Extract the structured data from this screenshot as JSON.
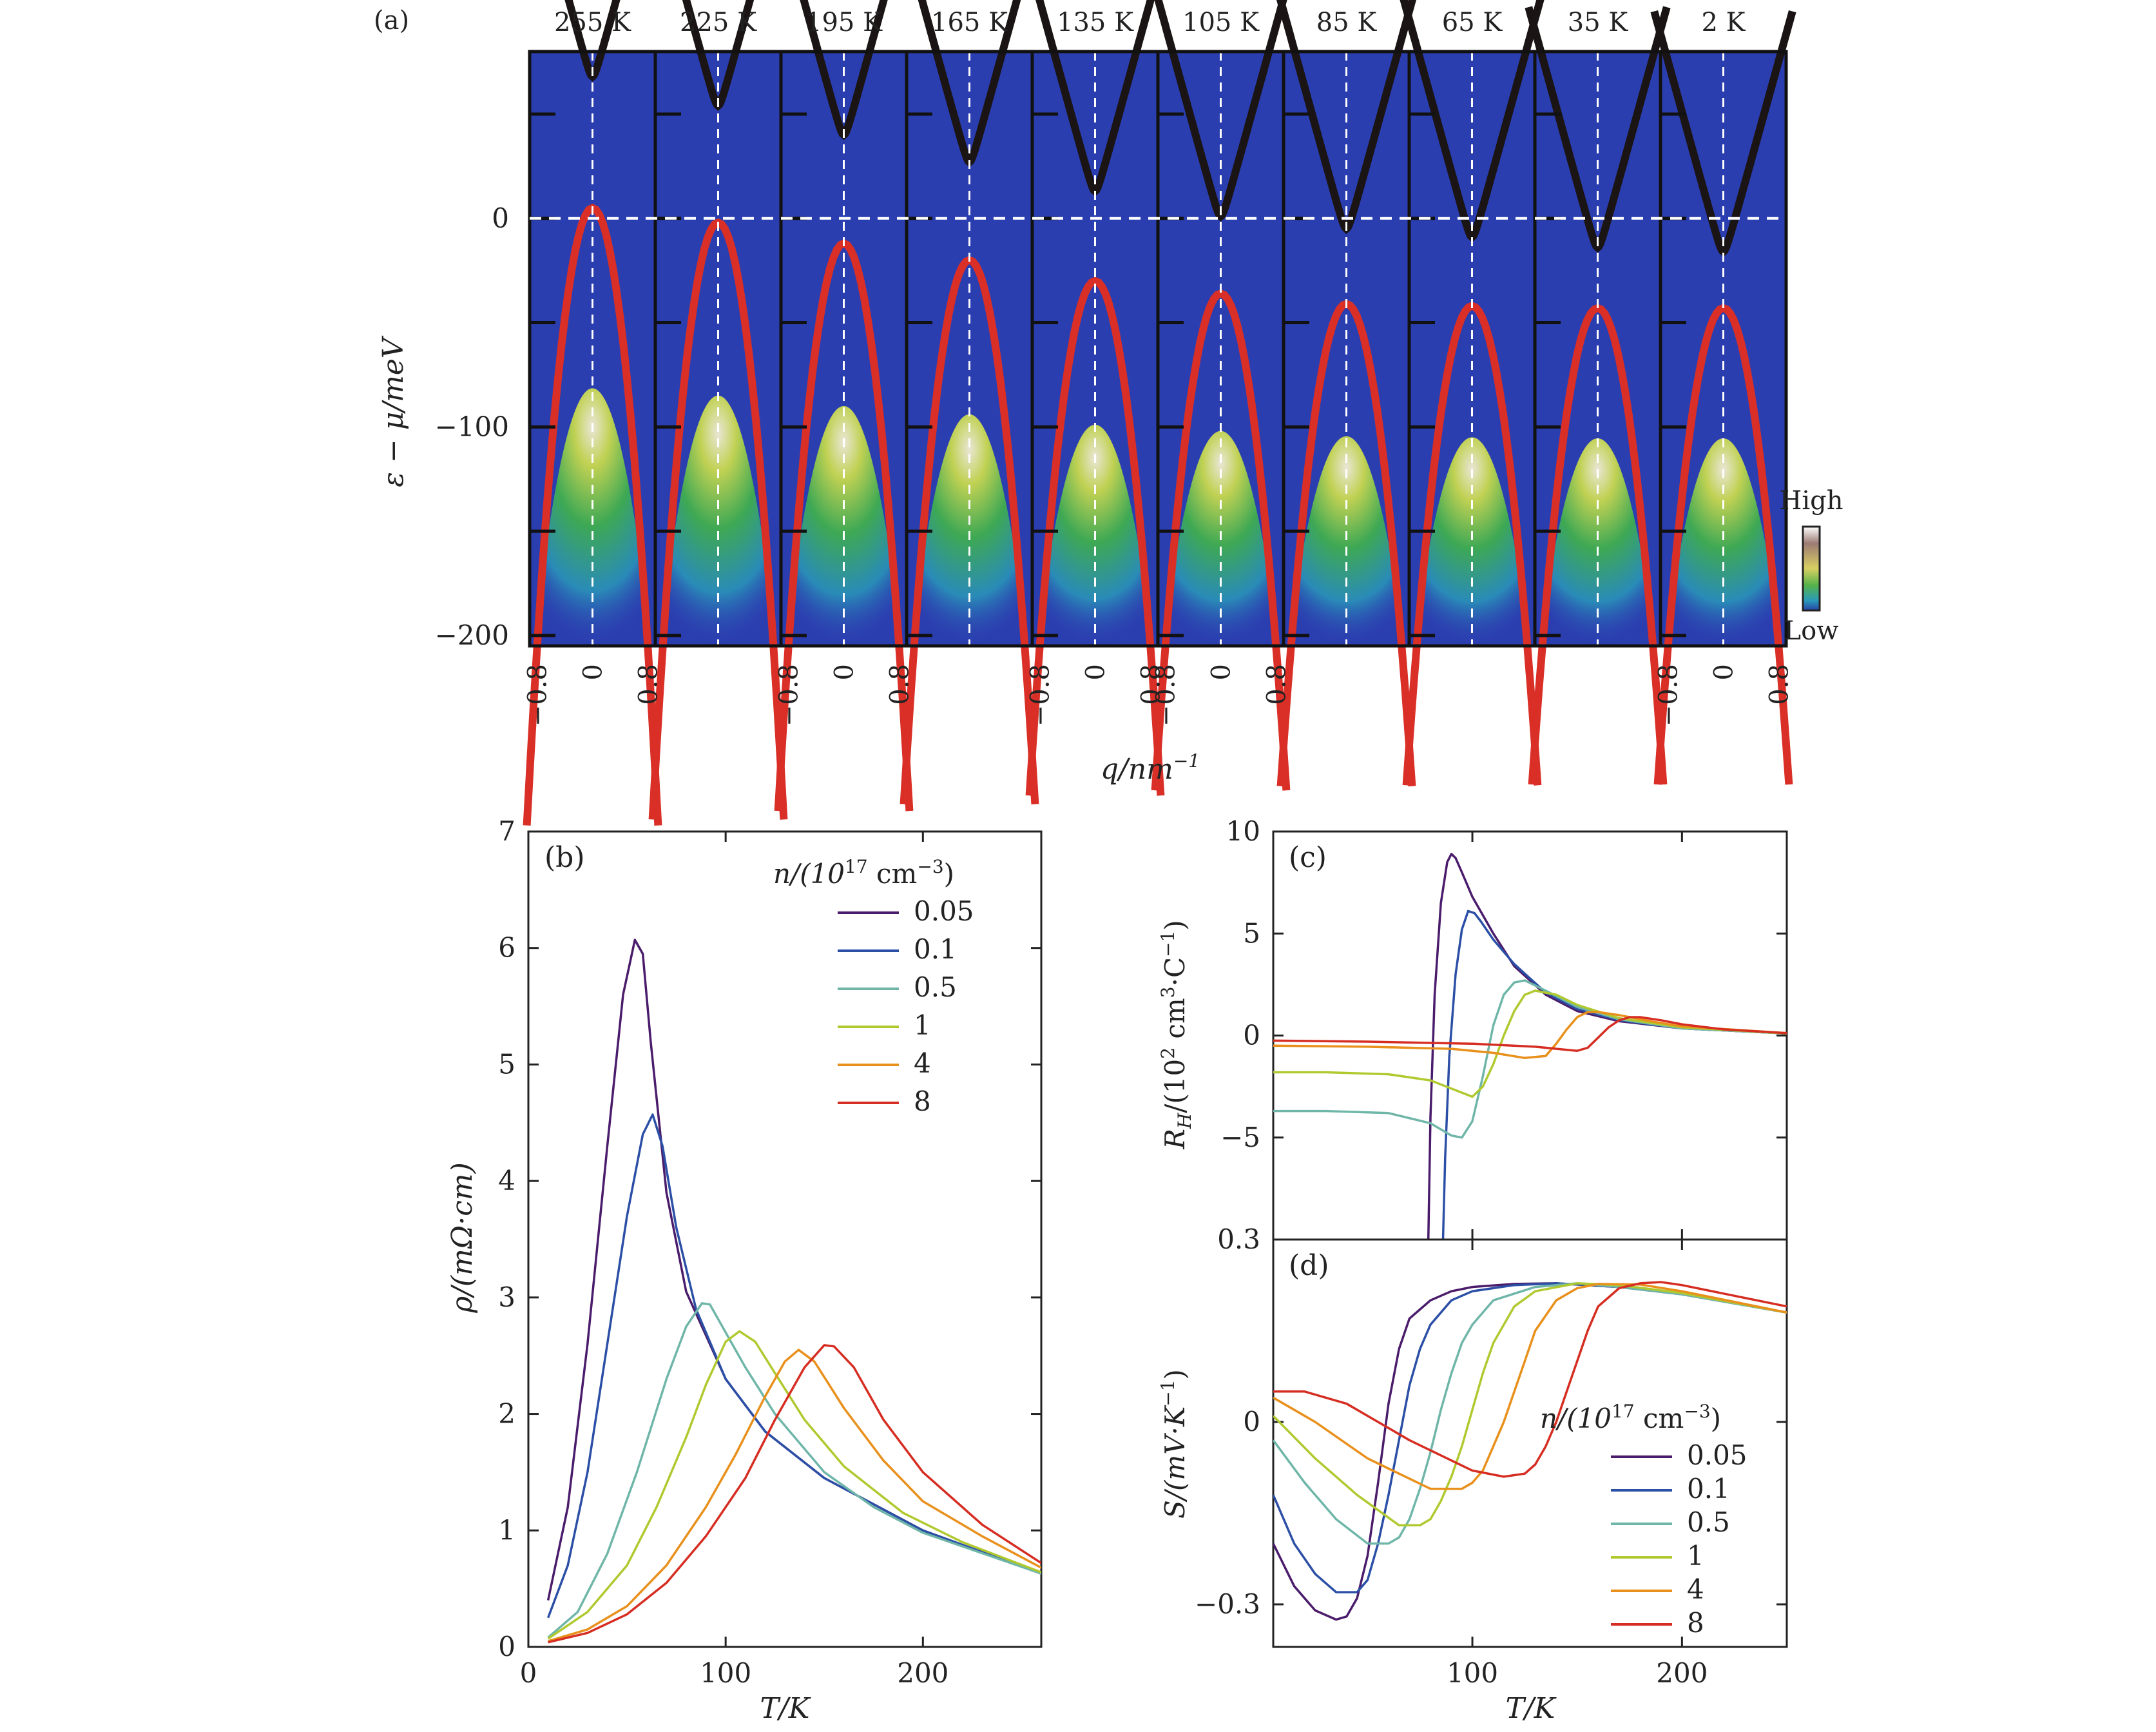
{
  "chart_data": [
    {
      "panel": "(a)",
      "type": "heatmap",
      "temperatures": [
        "255 K",
        "225 K",
        "195 K",
        "165 K",
        "135 K",
        "105 K",
        "85 K",
        "65 K",
        "35 K",
        "2 K"
      ],
      "conduction_min_meV": [
        68,
        54,
        40,
        27,
        13,
        1,
        -5,
        -9,
        -14,
        -16
      ],
      "valence_max_meV": [
        5,
        -2,
        -12,
        -20,
        -30,
        -36,
        -41,
        -42,
        -43,
        -43
      ],
      "ylabel": "ε − μ/meV",
      "xlabel": "q/nm",
      "xlabel_sup": "−1",
      "ylim": [
        -205,
        80
      ],
      "xlim": [
        -0.8,
        0.8
      ],
      "ytick_labels": [
        {
          "v": 0,
          "t": "0"
        },
        {
          "v": -100,
          "t": "−100"
        },
        {
          "v": -200,
          "t": "−200"
        }
      ],
      "minor_yticks": [
        50,
        0,
        -50,
        -100,
        -150,
        -200
      ],
      "xtick_labels": [
        "−0.8",
        "0",
        "0.8"
      ],
      "x_tick_panels": [
        0,
        2,
        4,
        5,
        9
      ],
      "colorbar": {
        "high": "High",
        "low": "Low"
      },
      "colors": {
        "valence": "#d92f27",
        "conduction": "#1a1414",
        "background": "#2b3eb0"
      }
    },
    {
      "panel": "(b)",
      "type": "line",
      "ylabel": "ρ/(mΩ·cm)",
      "xlabel": "T/K",
      "xlim": [
        0,
        260
      ],
      "ylim": [
        0,
        7
      ],
      "xticks": [
        0,
        100,
        200
      ],
      "yticks": [
        0,
        1,
        2,
        3,
        4,
        5,
        6,
        7
      ],
      "legend_title": "n/(10",
      "legend_title_sup": "17",
      "legend_title_tail": " cm",
      "legend_title_sup2": "−3",
      "legend_title_end": ")",
      "legend_position": "top-right",
      "series": [
        {
          "name": "0.05",
          "color": "#4a1c6b",
          "x": [
            10,
            20,
            30,
            40,
            48,
            54,
            58,
            62,
            70,
            80,
            100,
            120,
            150,
            200,
            260
          ],
          "y": [
            0.4,
            1.2,
            2.6,
            4.3,
            5.6,
            6.07,
            5.95,
            5.2,
            3.9,
            3.05,
            2.3,
            1.85,
            1.45,
            1.0,
            0.63
          ]
        },
        {
          "name": "0.1",
          "color": "#2c4fa6",
          "x": [
            10,
            20,
            30,
            40,
            50,
            58,
            63,
            68,
            75,
            85,
            100,
            120,
            150,
            200,
            260
          ],
          "y": [
            0.25,
            0.7,
            1.5,
            2.6,
            3.7,
            4.4,
            4.57,
            4.3,
            3.6,
            2.9,
            2.3,
            1.85,
            1.45,
            1.0,
            0.63
          ]
        },
        {
          "name": "0.5",
          "color": "#6fb6a9",
          "x": [
            10,
            25,
            40,
            55,
            70,
            80,
            88,
            92,
            100,
            110,
            125,
            150,
            175,
            200,
            260
          ],
          "y": [
            0.08,
            0.3,
            0.8,
            1.5,
            2.3,
            2.75,
            2.95,
            2.94,
            2.7,
            2.4,
            2.0,
            1.5,
            1.2,
            0.98,
            0.63
          ]
        },
        {
          "name": "1",
          "color": "#b0c92f",
          "x": [
            10,
            30,
            50,
            65,
            80,
            90,
            100,
            107,
            115,
            125,
            140,
            160,
            190,
            220,
            260
          ],
          "y": [
            0.07,
            0.3,
            0.7,
            1.2,
            1.8,
            2.25,
            2.62,
            2.71,
            2.62,
            2.35,
            1.95,
            1.55,
            1.15,
            0.9,
            0.64
          ]
        },
        {
          "name": "4",
          "color": "#e8901b",
          "x": [
            10,
            30,
            50,
            70,
            90,
            105,
            120,
            130,
            137,
            145,
            160,
            180,
            200,
            230,
            260
          ],
          "y": [
            0.05,
            0.15,
            0.35,
            0.7,
            1.2,
            1.65,
            2.15,
            2.45,
            2.55,
            2.45,
            2.05,
            1.6,
            1.25,
            0.95,
            0.68
          ]
        },
        {
          "name": "8",
          "color": "#d62d22",
          "x": [
            10,
            30,
            50,
            70,
            90,
            110,
            125,
            140,
            150,
            155,
            165,
            180,
            200,
            230,
            260
          ],
          "y": [
            0.04,
            0.12,
            0.28,
            0.55,
            0.95,
            1.45,
            1.95,
            2.4,
            2.59,
            2.58,
            2.4,
            1.95,
            1.5,
            1.05,
            0.72
          ]
        }
      ]
    },
    {
      "panel": "(c)",
      "type": "line",
      "ylabel": "R",
      "ylabel_sub": "H",
      "ylabel_tail": "/(10",
      "ylabel_sup": "2",
      "ylabel_tail2": " cm",
      "ylabel_sup2": "3",
      "ylabel_tail3": "·C",
      "ylabel_sup3": "−1",
      "ylabel_end": ")",
      "xlim": [
        5,
        250
      ],
      "ylim": [
        -10,
        10
      ],
      "yticks": [
        -5,
        0,
        5,
        10
      ],
      "series": [
        {
          "name": "0.05",
          "color": "#4a1c6b",
          "x": [
            79,
            80,
            82,
            85,
            88,
            90,
            92,
            95,
            100,
            110,
            120,
            135,
            150,
            170,
            200,
            250
          ],
          "y": [
            -10,
            -4,
            2,
            6.5,
            8.5,
            8.9,
            8.7,
            8.0,
            6.8,
            5.0,
            3.4,
            2.0,
            1.2,
            0.7,
            0.35,
            0.1
          ]
        },
        {
          "name": "0.1",
          "color": "#2c4fa6",
          "x": [
            86,
            87,
            89,
            92,
            95,
            98,
            101,
            104,
            110,
            120,
            135,
            150,
            170,
            200,
            250
          ],
          "y": [
            -10,
            -6,
            -1,
            3,
            5.2,
            6.1,
            6.0,
            5.6,
            4.7,
            3.5,
            2.1,
            1.3,
            0.75,
            0.35,
            0.1
          ]
        },
        {
          "name": "0.5",
          "color": "#6fb6a9",
          "x": [
            5,
            30,
            60,
            80,
            90,
            95,
            100,
            105,
            110,
            115,
            120,
            125,
            135,
            150,
            170,
            200,
            250
          ],
          "y": [
            -3.7,
            -3.7,
            -3.8,
            -4.3,
            -4.9,
            -5.0,
            -4.2,
            -2,
            0.5,
            2.0,
            2.6,
            2.7,
            2.2,
            1.4,
            0.8,
            0.35,
            0.1
          ]
        },
        {
          "name": "1",
          "color": "#b0c92f",
          "x": [
            5,
            30,
            60,
            80,
            95,
            100,
            105,
            110,
            115,
            120,
            125,
            130,
            140,
            150,
            170,
            200,
            250
          ],
          "y": [
            -1.8,
            -1.8,
            -1.9,
            -2.2,
            -2.8,
            -3.0,
            -2.5,
            -1.4,
            0,
            1.2,
            2.0,
            2.2,
            2.0,
            1.5,
            0.85,
            0.4,
            0.1
          ]
        },
        {
          "name": "4",
          "color": "#e8901b",
          "x": [
            5,
            50,
            90,
            110,
            125,
            135,
            140,
            145,
            150,
            155,
            160,
            170,
            185,
            200,
            250
          ],
          "y": [
            -0.5,
            -0.55,
            -0.65,
            -0.85,
            -1.1,
            -1.0,
            -0.4,
            0.3,
            0.9,
            1.15,
            1.15,
            1.0,
            0.7,
            0.45,
            0.12
          ]
        },
        {
          "name": "8",
          "color": "#d62d22",
          "x": [
            5,
            50,
            100,
            130,
            150,
            155,
            160,
            165,
            170,
            175,
            180,
            190,
            200,
            220,
            250
          ],
          "y": [
            -0.25,
            -0.3,
            -0.4,
            -0.55,
            -0.75,
            -0.6,
            -0.1,
            0.4,
            0.75,
            0.9,
            0.9,
            0.75,
            0.55,
            0.3,
            0.12
          ]
        }
      ]
    },
    {
      "panel": "(d)",
      "type": "line",
      "ylabel": "S/(mV·K",
      "ylabel_sup": "−1",
      "ylabel_end": ")",
      "xlabel": "T/K",
      "xlim": [
        5,
        250
      ],
      "ylim": [
        -0.37,
        0.3
      ],
      "xticks": [
        100,
        200
      ],
      "yticks": [
        -0.3,
        0,
        0.3
      ],
      "ytick_labels": [
        "−0.3",
        "0",
        "0.3"
      ],
      "legend_title": "n/(10",
      "legend_title_sup": "17",
      "legend_title_tail": " cm",
      "legend_title_sup2": "−3",
      "legend_title_end": ")",
      "legend_position": "bottom-right",
      "series": [
        {
          "name": "0.05",
          "color": "#4a1c6b",
          "x": [
            5,
            15,
            25,
            35,
            40,
            45,
            50,
            55,
            60,
            65,
            70,
            80,
            90,
            100,
            120,
            140,
            170,
            200,
            250
          ],
          "y": [
            -0.2,
            -0.27,
            -0.31,
            -0.325,
            -0.32,
            -0.29,
            -0.22,
            -0.1,
            0.03,
            0.12,
            0.17,
            0.2,
            0.215,
            0.222,
            0.227,
            0.228,
            0.222,
            0.21,
            0.18
          ]
        },
        {
          "name": "0.1",
          "color": "#2c4fa6",
          "x": [
            5,
            15,
            25,
            35,
            45,
            50,
            55,
            60,
            65,
            70,
            75,
            80,
            90,
            100,
            120,
            140,
            170,
            200,
            250
          ],
          "y": [
            -0.12,
            -0.2,
            -0.25,
            -0.28,
            -0.28,
            -0.26,
            -0.2,
            -0.12,
            -0.03,
            0.06,
            0.12,
            0.16,
            0.2,
            0.215,
            0.225,
            0.228,
            0.222,
            0.21,
            0.18
          ]
        },
        {
          "name": "0.5",
          "color": "#6fb6a9",
          "x": [
            5,
            20,
            35,
            50,
            60,
            65,
            70,
            75,
            80,
            85,
            90,
            95,
            100,
            110,
            130,
            150,
            170,
            200,
            250
          ],
          "y": [
            -0.03,
            -0.1,
            -0.16,
            -0.2,
            -0.2,
            -0.19,
            -0.16,
            -0.11,
            -0.05,
            0.02,
            0.08,
            0.13,
            0.16,
            0.2,
            0.222,
            0.228,
            0.222,
            0.21,
            0.18
          ]
        },
        {
          "name": "1",
          "color": "#b0c92f",
          "x": [
            5,
            25,
            45,
            65,
            75,
            80,
            85,
            90,
            95,
            100,
            105,
            110,
            120,
            130,
            150,
            170,
            200,
            250
          ],
          "y": [
            0.01,
            -0.06,
            -0.12,
            -0.17,
            -0.17,
            -0.16,
            -0.13,
            -0.09,
            -0.04,
            0.02,
            0.08,
            0.13,
            0.19,
            0.215,
            0.228,
            0.225,
            0.212,
            0.18
          ]
        },
        {
          "name": "4",
          "color": "#e8901b",
          "x": [
            5,
            25,
            50,
            80,
            95,
            100,
            105,
            110,
            115,
            120,
            125,
            130,
            140,
            150,
            160,
            180,
            200,
            250
          ],
          "y": [
            0.04,
            0.0,
            -0.06,
            -0.11,
            -0.11,
            -0.1,
            -0.08,
            -0.04,
            0.0,
            0.05,
            0.1,
            0.15,
            0.2,
            0.22,
            0.227,
            0.226,
            0.215,
            0.18
          ]
        },
        {
          "name": "8",
          "color": "#d62d22",
          "x": [
            5,
            20,
            40,
            70,
            100,
            115,
            125,
            130,
            135,
            140,
            145,
            150,
            155,
            160,
            170,
            180,
            190,
            200,
            250
          ],
          "y": [
            0.05,
            0.05,
            0.03,
            -0.03,
            -0.08,
            -0.09,
            -0.085,
            -0.07,
            -0.04,
            0.0,
            0.05,
            0.1,
            0.15,
            0.19,
            0.22,
            0.228,
            0.23,
            0.225,
            0.19
          ]
        }
      ]
    }
  ]
}
